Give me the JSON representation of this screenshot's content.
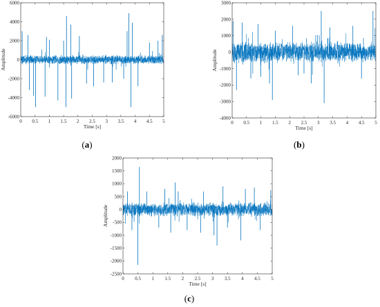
{
  "figure": {
    "line_color": "#0072BD",
    "axis_color": "#262626"
  },
  "chart_data": [
    {
      "type": "line",
      "panel": "a",
      "label_open": "(",
      "label_letter": "a",
      "label_close": ")",
      "xlabel": "Time [s]",
      "ylabel": "Amplitude",
      "xlim": [
        0,
        5
      ],
      "ylim": [
        -6000,
        6000
      ],
      "xticks": [
        0,
        0.5,
        1,
        1.5,
        2,
        2.5,
        3,
        3.5,
        4,
        4.5,
        5
      ],
      "xtick_labels": [
        "0",
        "0.5",
        "1",
        "1.5",
        "2",
        "2.5",
        "3",
        "3.5",
        "4",
        "4.5",
        "5"
      ],
      "yticks": [
        -6000,
        -4000,
        -2000,
        0,
        2000,
        4000,
        6000
      ],
      "ytick_labels": [
        "-6000",
        "-4000",
        "-2000",
        "0",
        "2000",
        "4000",
        "6000"
      ],
      "series": [
        {
          "noise_amplitude": 450,
          "spikes": [
            {
              "x": 0.05,
              "y": 3000
            },
            {
              "x": 0.25,
              "y": 2600
            },
            {
              "x": 0.3,
              "y": -3200
            },
            {
              "x": 0.45,
              "y": -3800
            },
            {
              "x": 0.52,
              "y": -5000
            },
            {
              "x": 0.85,
              "y": -3900
            },
            {
              "x": 0.9,
              "y": 2400
            },
            {
              "x": 1.0,
              "y": 2100
            },
            {
              "x": 1.3,
              "y": -4300
            },
            {
              "x": 1.5,
              "y": 2000
            },
            {
              "x": 1.58,
              "y": -5000
            },
            {
              "x": 1.6,
              "y": 4600
            },
            {
              "x": 1.75,
              "y": 3700
            },
            {
              "x": 1.78,
              "y": -4100
            },
            {
              "x": 2.05,
              "y": 2500
            },
            {
              "x": 2.3,
              "y": -2500
            },
            {
              "x": 2.55,
              "y": -2800
            },
            {
              "x": 2.9,
              "y": -2400
            },
            {
              "x": 3.2,
              "y": -2400
            },
            {
              "x": 3.6,
              "y": -2000
            },
            {
              "x": 3.72,
              "y": 3000
            },
            {
              "x": 3.78,
              "y": 4900
            },
            {
              "x": 3.85,
              "y": -5000
            },
            {
              "x": 3.9,
              "y": 3900
            },
            {
              "x": 4.1,
              "y": -2800
            },
            {
              "x": 4.5,
              "y": 1800
            },
            {
              "x": 4.8,
              "y": 2000
            },
            {
              "x": 4.95,
              "y": 2600
            }
          ]
        }
      ]
    },
    {
      "type": "line",
      "panel": "b",
      "label_open": "(",
      "label_letter": "b",
      "label_close": ")",
      "xlabel": "Time [s]",
      "ylabel": "Amplitude",
      "xlim": [
        0,
        5
      ],
      "ylim": [
        -4000,
        3000
      ],
      "xticks": [
        0,
        0.5,
        1,
        1.5,
        2,
        2.5,
        3,
        3.5,
        4,
        4.5,
        5
      ],
      "xtick_labels": [
        "0",
        "0.5",
        "1",
        "1.5",
        "2",
        "2.5",
        "3",
        "3.5",
        "4",
        "4.5",
        "5"
      ],
      "yticks": [
        -4000,
        -3000,
        -2000,
        -1000,
        0,
        1000,
        2000,
        3000
      ],
      "ytick_labels": [
        "-4000",
        "-3000",
        "-2000",
        "-1000",
        "0",
        "1000",
        "2000",
        "3000"
      ],
      "series": [
        {
          "noise_amplitude": 600,
          "spikes": [
            {
              "x": 0.03,
              "y": 1900
            },
            {
              "x": 0.15,
              "y": -2300
            },
            {
              "x": 0.35,
              "y": 1800
            },
            {
              "x": 0.65,
              "y": -1600
            },
            {
              "x": 0.9,
              "y": 1700
            },
            {
              "x": 1.0,
              "y": -1500
            },
            {
              "x": 1.3,
              "y": -1900
            },
            {
              "x": 1.4,
              "y": -2900
            },
            {
              "x": 1.5,
              "y": 1300
            },
            {
              "x": 2.1,
              "y": 1600
            },
            {
              "x": 2.3,
              "y": -1400
            },
            {
              "x": 2.5,
              "y": -1300
            },
            {
              "x": 2.75,
              "y": -1900
            },
            {
              "x": 3.1,
              "y": 2500
            },
            {
              "x": 3.2,
              "y": -3100
            },
            {
              "x": 3.4,
              "y": 1500
            },
            {
              "x": 4.2,
              "y": 1600
            },
            {
              "x": 4.5,
              "y": -1600
            },
            {
              "x": 4.9,
              "y": 2500
            }
          ]
        }
      ]
    },
    {
      "type": "line",
      "panel": "c",
      "label_open": "(",
      "label_letter": "c",
      "label_close": ")",
      "xlabel": "Time [s]",
      "ylabel": "Amplitude",
      "xlim": [
        0,
        5
      ],
      "ylim": [
        -2500,
        2000
      ],
      "xticks": [
        0,
        0.5,
        1,
        1.5,
        2,
        2.5,
        3,
        3.5,
        4,
        4.5,
        5
      ],
      "xtick_labels": [
        "0",
        "0.5",
        "1",
        "1.5",
        "2",
        "2.5",
        "3",
        "3.5",
        "4",
        "4.5",
        "5"
      ],
      "yticks": [
        -2500,
        -2000,
        -1500,
        -1000,
        -500,
        0,
        500,
        1000,
        1500,
        2000
      ],
      "ytick_labels": [
        "-2500",
        "-2000",
        "-1500",
        "-1000",
        "-500",
        "0",
        "500",
        "1000",
        "1500",
        "2000"
      ],
      "series": [
        {
          "noise_amplitude": 260,
          "spikes": [
            {
              "x": 0.15,
              "y": 700
            },
            {
              "x": 0.3,
              "y": -800
            },
            {
              "x": 0.5,
              "y": -2150
            },
            {
              "x": 0.55,
              "y": 1650
            },
            {
              "x": 0.8,
              "y": 700
            },
            {
              "x": 1.2,
              "y": -700
            },
            {
              "x": 1.4,
              "y": 800
            },
            {
              "x": 1.6,
              "y": -900
            },
            {
              "x": 1.75,
              "y": 1050
            },
            {
              "x": 1.85,
              "y": 700
            },
            {
              "x": 2.15,
              "y": -800
            },
            {
              "x": 2.6,
              "y": -900
            },
            {
              "x": 2.7,
              "y": 700
            },
            {
              "x": 3.05,
              "y": -1000
            },
            {
              "x": 3.15,
              "y": -1400
            },
            {
              "x": 3.35,
              "y": 900
            },
            {
              "x": 3.5,
              "y": -700
            },
            {
              "x": 3.95,
              "y": -1200
            },
            {
              "x": 4.1,
              "y": 800
            },
            {
              "x": 4.4,
              "y": 850
            },
            {
              "x": 4.6,
              "y": -800
            },
            {
              "x": 4.95,
              "y": 750
            }
          ]
        }
      ]
    }
  ]
}
